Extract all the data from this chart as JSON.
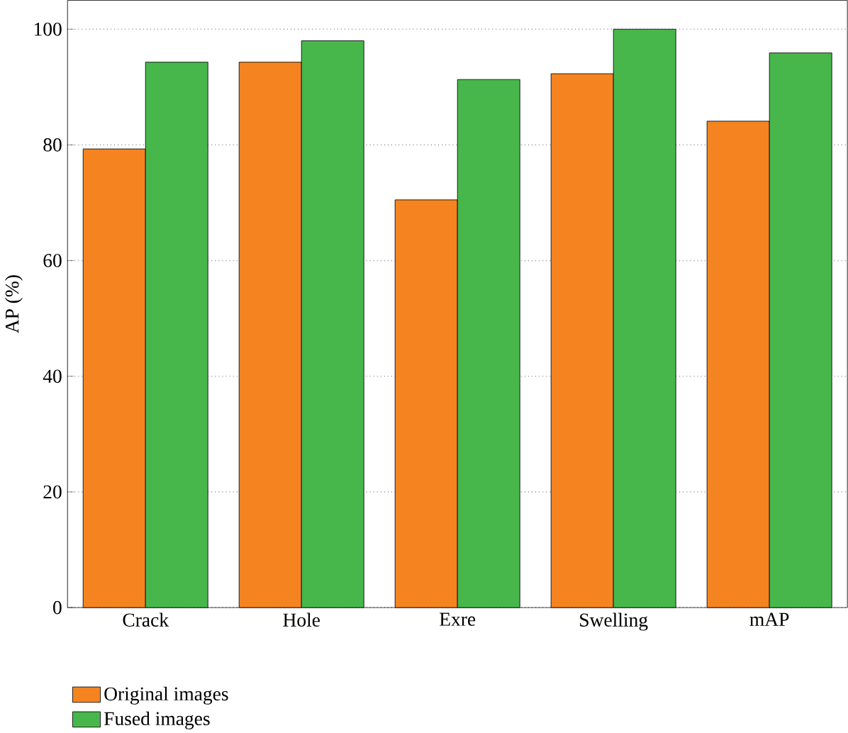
{
  "chart_data": {
    "type": "bar",
    "ylabel": "AP (%)",
    "categories": [
      "Crack",
      "Hole",
      "Exre",
      "Swelling",
      "mAP"
    ],
    "series": [
      {
        "name": "Original images",
        "color": "#f58420",
        "values": [
          79.3,
          94.3,
          70.5,
          92.3,
          84.1
        ]
      },
      {
        "name": "Fused images",
        "color": "#47b74b",
        "values": [
          94.3,
          98.0,
          91.3,
          100.0,
          95.9
        ]
      }
    ],
    "ylim": [
      0,
      105
    ],
    "yticks": [
      0,
      20,
      40,
      60,
      80,
      100
    ],
    "grid": "y",
    "legend": "bottom"
  }
}
